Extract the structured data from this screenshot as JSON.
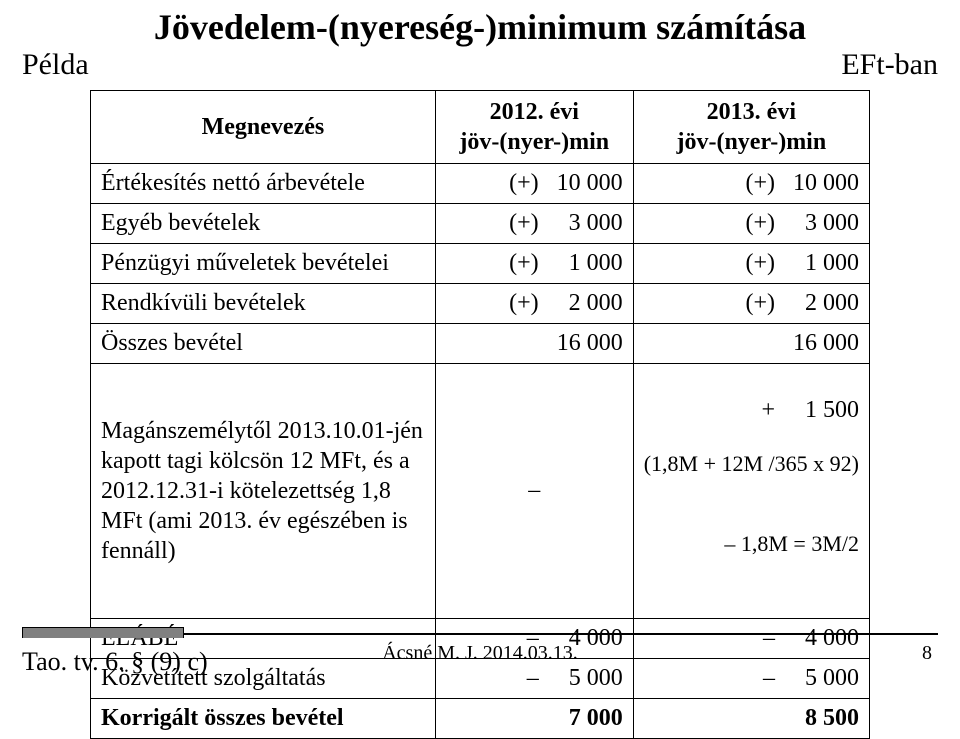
{
  "title": "Jövedelem-(nyereség-)minimum számítása",
  "pelda": "Példa",
  "unit": "EFt-ban",
  "columns": {
    "label": "Megnevezés",
    "col2012": "2012. évi\njöv-(nyer-)min",
    "col2013": "2013. évi\njöv-(nyer-)min"
  },
  "rows": [
    {
      "label": "Értékesítés nettó árbevétele",
      "v1": "(+)   10 000",
      "v2": "(+)   10 000"
    },
    {
      "label": "Egyéb bevételek",
      "v1": "(+)     3 000",
      "v2": "(+)     3 000"
    },
    {
      "label": "Pénzügyi műveletek bevételei",
      "v1": "(+)     1 000",
      "v2": "(+)     1 000"
    },
    {
      "label": "Rendkívüli bevételek",
      "v1": "(+)     2 000",
      "v2": "(+)     2 000"
    },
    {
      "label": "Összes bevétel",
      "v1": "16 000",
      "v2": "16 000"
    }
  ],
  "specialRow": {
    "label": "Magánszemélytől 2013.10.01-jén kapott tagi kölcsön 12 MFt, és a 2012.12.31-i kötelezettség 1,8 MFt (ami 2013. év egészében is fennáll)",
    "v1": "–",
    "v2main": "+     1 500",
    "v2s1": "(1,8M + 12M /365 x 92)",
    "v2s2": "– 1,8M = 3M/2"
  },
  "tailRows": [
    {
      "label": "ELÁBÉ",
      "v1": "–     4 000",
      "v2": "–     4 000"
    },
    {
      "label": "Közvetített szolgáltatás",
      "v1": "–     5 000",
      "v2": "–     5 000"
    }
  ],
  "totalRow": {
    "label": "Korrigált összes bevétel",
    "v1": "7 000",
    "v2": "8 500"
  },
  "footer": {
    "left": "Tao. tv. 6. § (9) c)",
    "center": "Ácsné M. J. 2014.03.13.",
    "page": "8"
  }
}
